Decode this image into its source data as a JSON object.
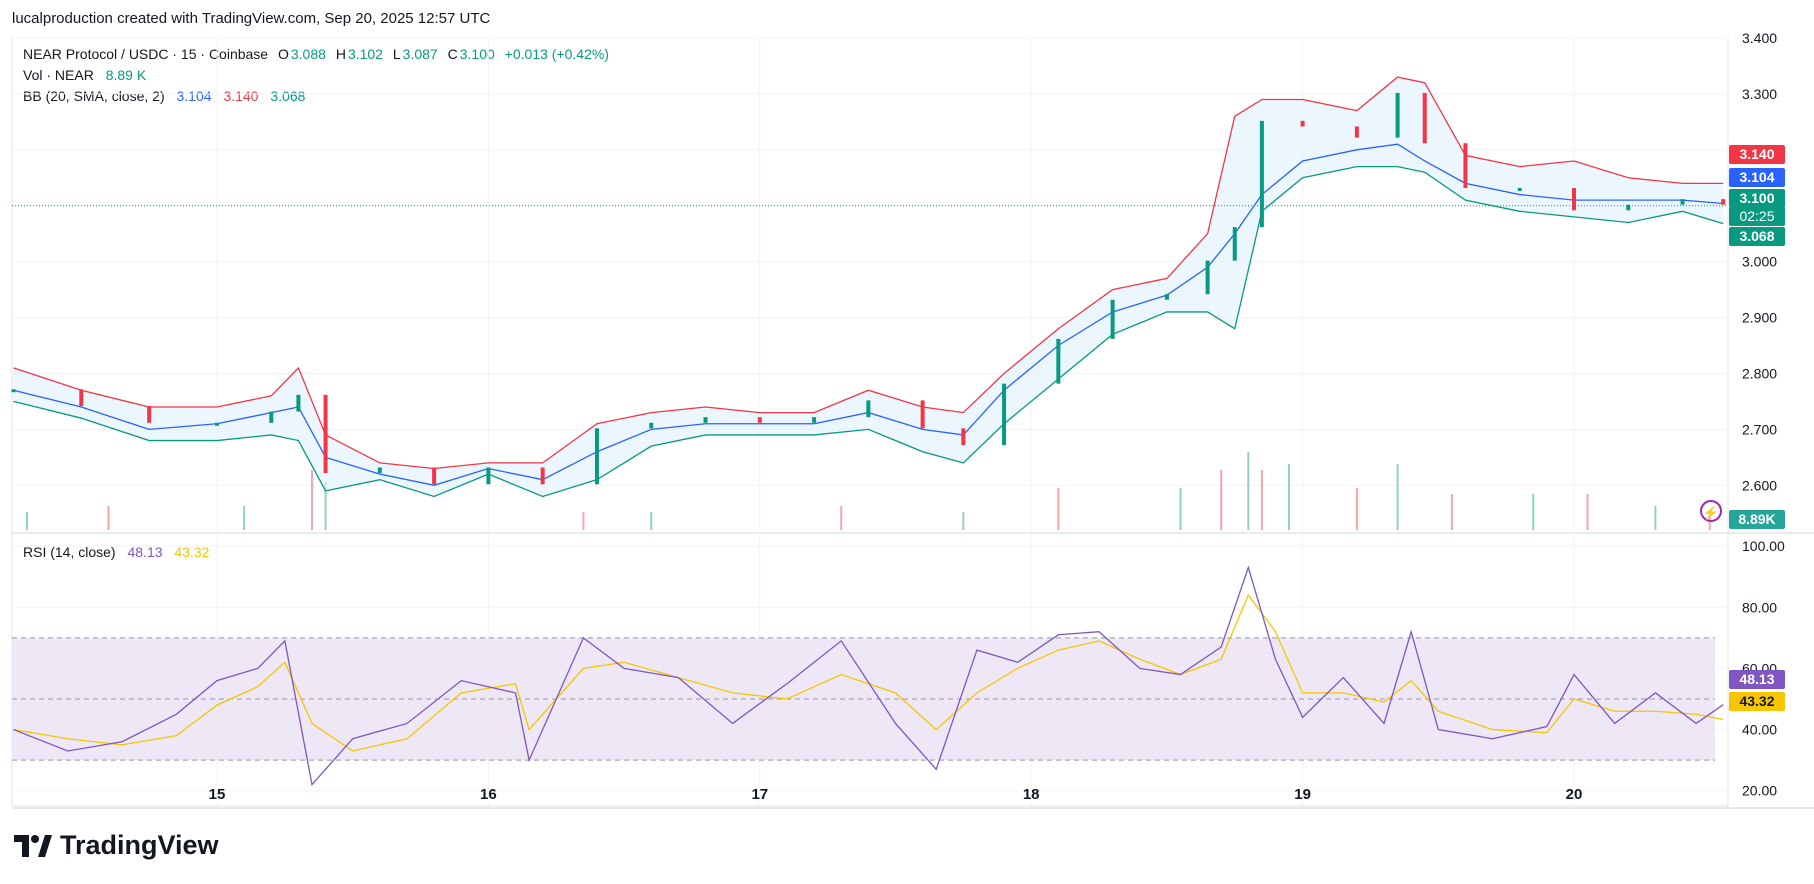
{
  "header": {
    "credit": "lucalproduction created with TradingView.com, Sep 20, 2025 12:57 UTC"
  },
  "legend": {
    "symbol": "NEAR Protocol / USDC · 15 · Coinbase",
    "o_label": "O",
    "o_value": "3.088",
    "h_label": "H",
    "h_value": "3.102",
    "l_label": "L",
    "l_value": "3.087",
    "c_label": "C",
    "c_value": "3.100",
    "change": "+0.013 (+0.42%)",
    "vol_label": "Vol · NEAR",
    "vol_value": "8.89 K",
    "bb_label": "BB (20, SMA, close, 2)",
    "bb_basis": "3.104",
    "bb_upper": "3.140",
    "bb_lower": "3.068",
    "rsi_label": "RSI (14, close)",
    "rsi_value": "48.13",
    "rsi_ma": "43.32"
  },
  "price_tags": {
    "upper": "3.140",
    "basis": "3.104",
    "last": "3.100",
    "countdown": "02:25",
    "lower": "3.068",
    "volume": "8.89K",
    "rsi": "48.13",
    "rsi_ma": "43.32"
  },
  "brand": {
    "name": "TradingView"
  },
  "colors": {
    "up": "#089981",
    "down": "#f23645",
    "basis": "#2962ff",
    "upper": "#f23645",
    "lower": "#089981",
    "rsi": "#7e57c2",
    "rsi_ma": "#f7c600",
    "band_fill": "#e3f2fd",
    "rsi_band": "#ede7f6"
  },
  "chart_data": [
    {
      "type": "line",
      "title": "NEAR Protocol / USDC · 15 · Coinbase",
      "x_ticks": [
        "15",
        "16",
        "17",
        "18",
        "19",
        "20"
      ],
      "y_ticks": [
        "2.600",
        "2.700",
        "2.800",
        "2.900",
        "3.000",
        "3.100",
        "3.200",
        "3.300",
        "3.400"
      ],
      "ylim": [
        2.52,
        3.4
      ],
      "x_days": [
        14.25,
        14.5,
        14.75,
        15.0,
        15.2,
        15.3,
        15.4,
        15.6,
        15.8,
        16.0,
        16.2,
        16.4,
        16.6,
        16.8,
        17.0,
        17.2,
        17.4,
        17.6,
        17.75,
        17.9,
        18.1,
        18.3,
        18.5,
        18.65,
        18.75,
        18.85,
        19.0,
        19.2,
        19.35,
        19.45,
        19.6,
        19.8,
        20.0,
        20.2,
        20.4,
        20.55
      ],
      "series": [
        {
          "name": "basis",
          "values": [
            2.77,
            2.74,
            2.7,
            2.71,
            2.73,
            2.74,
            2.65,
            2.62,
            2.6,
            2.63,
            2.61,
            2.66,
            2.7,
            2.71,
            2.71,
            2.71,
            2.73,
            2.7,
            2.69,
            2.77,
            2.85,
            2.91,
            2.94,
            2.99,
            3.05,
            3.12,
            3.18,
            3.2,
            3.21,
            3.18,
            3.14,
            3.12,
            3.11,
            3.11,
            3.11,
            3.104
          ]
        },
        {
          "name": "upper",
          "values": [
            2.81,
            2.77,
            2.74,
            2.74,
            2.76,
            2.81,
            2.69,
            2.64,
            2.63,
            2.64,
            2.64,
            2.71,
            2.73,
            2.74,
            2.73,
            2.73,
            2.77,
            2.74,
            2.73,
            2.8,
            2.88,
            2.95,
            2.97,
            3.05,
            3.26,
            3.29,
            3.29,
            3.27,
            3.33,
            3.32,
            3.19,
            3.17,
            3.18,
            3.15,
            3.14,
            3.14
          ]
        },
        {
          "name": "lower",
          "values": [
            2.75,
            2.72,
            2.68,
            2.68,
            2.69,
            2.68,
            2.59,
            2.61,
            2.58,
            2.62,
            2.58,
            2.61,
            2.67,
            2.69,
            2.69,
            2.69,
            2.7,
            2.66,
            2.64,
            2.71,
            2.79,
            2.87,
            2.91,
            2.91,
            2.88,
            3.09,
            3.15,
            3.17,
            3.17,
            3.16,
            3.11,
            3.09,
            3.08,
            3.07,
            3.09,
            3.068
          ]
        },
        {
          "name": "close",
          "values": [
            2.77,
            2.74,
            2.71,
            2.71,
            2.73,
            2.76,
            2.62,
            2.63,
            2.6,
            2.63,
            2.6,
            2.7,
            2.71,
            2.72,
            2.71,
            2.72,
            2.75,
            2.7,
            2.67,
            2.78,
            2.86,
            2.93,
            2.94,
            3.0,
            3.06,
            3.25,
            3.24,
            3.22,
            3.3,
            3.21,
            3.13,
            3.13,
            3.09,
            3.1,
            3.11,
            3.1
          ]
        }
      ]
    },
    {
      "type": "bar",
      "title": "Vol · NEAR",
      "x_days": [
        14.3,
        14.6,
        15.1,
        15.35,
        15.4,
        16.35,
        16.6,
        17.3,
        17.75,
        18.1,
        18.55,
        18.7,
        18.8,
        18.85,
        18.95,
        19.2,
        19.35,
        19.55,
        19.85,
        20.05,
        20.3,
        20.5
      ],
      "values": [
        0.3,
        0.4,
        0.4,
        1.0,
        0.8,
        0.3,
        0.3,
        0.4,
        0.3,
        0.7,
        0.7,
        1.0,
        1.3,
        1.0,
        1.1,
        0.7,
        1.1,
        0.6,
        0.6,
        0.6,
        0.4,
        0.3
      ]
    },
    {
      "type": "line",
      "title": "RSI (14, close)",
      "y_ticks": [
        "20.00",
        "40.00",
        "60.00",
        "80.00",
        "100.00"
      ],
      "ylim": [
        15,
        102
      ],
      "bands": [
        30,
        50,
        70
      ],
      "x_days": [
        14.25,
        14.45,
        14.65,
        14.85,
        15.0,
        15.15,
        15.25,
        15.35,
        15.5,
        15.7,
        15.9,
        16.1,
        16.15,
        16.35,
        16.5,
        16.7,
        16.9,
        17.1,
        17.3,
        17.5,
        17.65,
        17.8,
        17.95,
        18.1,
        18.25,
        18.4,
        18.55,
        18.7,
        18.8,
        18.9,
        19.0,
        19.15,
        19.3,
        19.4,
        19.5,
        19.7,
        19.9,
        20.0,
        20.15,
        20.3,
        20.45,
        20.55
      ],
      "series": [
        {
          "name": "RSI",
          "values": [
            40,
            33,
            36,
            45,
            56,
            60,
            69,
            22,
            37,
            42,
            56,
            52,
            30,
            70,
            60,
            57,
            42,
            55,
            69,
            42,
            27,
            66,
            62,
            71,
            72,
            60,
            58,
            67,
            93,
            63,
            44,
            57,
            42,
            72,
            40,
            37,
            41,
            58,
            42,
            52,
            42,
            48.13
          ]
        },
        {
          "name": "MA",
          "values": [
            40,
            37,
            35,
            38,
            48,
            54,
            62,
            42,
            33,
            37,
            52,
            55,
            40,
            60,
            62,
            57,
            52,
            50,
            58,
            52,
            40,
            52,
            60,
            66,
            69,
            63,
            58,
            63,
            84,
            72,
            52,
            52,
            49,
            56,
            46,
            40,
            39,
            50,
            46,
            46,
            45,
            43.32
          ]
        }
      ]
    }
  ]
}
